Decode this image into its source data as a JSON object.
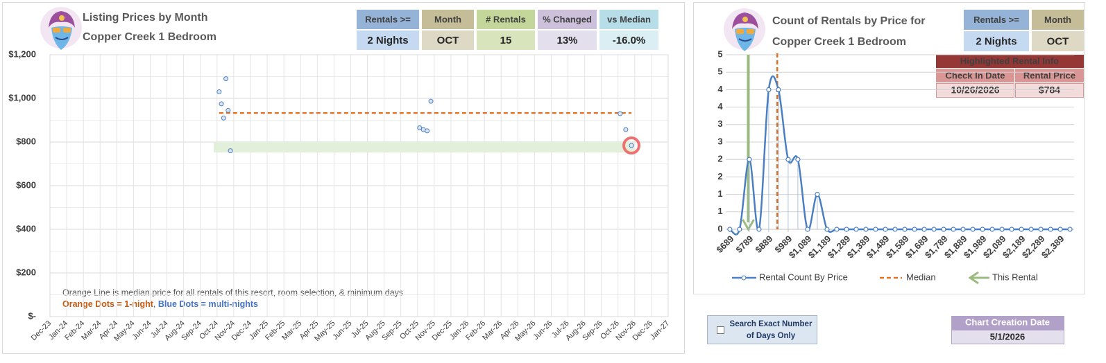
{
  "chart_data": [
    {
      "type": "scatter",
      "title": "Listing Prices by Month",
      "subtitle": "Copper Creek 1 Bedroom",
      "categories": [
        "Dec-23",
        "Jan-24",
        "Feb-24",
        "Mar-24",
        "Apr-24",
        "May-24",
        "Jun-24",
        "Jul-24",
        "Aug-24",
        "Sep-24",
        "Oct-24",
        "Nov-24",
        "Dec-24",
        "Jan-25",
        "Feb-25",
        "Mar-25",
        "Apr-25",
        "May-25",
        "Jun-25",
        "Jul-25",
        "Aug-25",
        "Sep-25",
        "Oct-25",
        "Nov-25",
        "Dec-25",
        "Jan-26",
        "Feb-26",
        "Mar-26",
        "Apr-26",
        "May-26",
        "Jun-26",
        "Jul-26",
        "Aug-26",
        "Sep-26",
        "Oct-26",
        "Nov-26",
        "Dec-26",
        "Jan-27"
      ],
      "series": [
        {
          "color": "#4a7fc1",
          "x": [
            "Oct-24",
            "Oct-24",
            "Oct-24",
            "Oct-24",
            "Oct-24",
            "Oct-24",
            "Oct-25",
            "Oct-25",
            "Oct-25",
            "Oct-25",
            "Oct-26",
            "Oct-26",
            "Oct-26"
          ],
          "values": [
            1030,
            975,
            910,
            1090,
            945,
            760,
            865,
            857,
            851,
            987,
            930,
            857,
            784
          ]
        }
      ],
      "ylim": [
        0,
        1200
      ],
      "yticks": [
        {
          "value": 0,
          "label": "$-"
        },
        {
          "value": 200,
          "label": "$200"
        },
        {
          "value": 400,
          "label": "$400"
        },
        {
          "value": 600,
          "label": "$600"
        },
        {
          "value": 800,
          "label": "$800"
        },
        {
          "value": 1000,
          "label": "$1,000"
        },
        {
          "value": 1200,
          "label": "$1,200"
        }
      ],
      "grid": true,
      "median": 933,
      "median_color": "#e07020",
      "band": [
        752,
        800
      ],
      "band_color": "#e2efda",
      "highlighted_point": 12,
      "notes": [
        "Orange Line is median price for all rentals of this resort, room selection, & minimum days"
      ],
      "dot_key": [
        "Orange Dots = 1-night",
        ", ",
        "Blue Dots = multi-nights"
      ]
    },
    {
      "type": "line",
      "title": "Count of Rentals by Price for",
      "subtitle": "Copper Creek 1 Bedroom",
      "x": [
        689,
        739,
        789,
        839,
        889,
        939,
        989,
        1039,
        1089,
        1139,
        1189,
        1239,
        1289,
        1339,
        1389,
        1439,
        1489,
        1539,
        1589,
        1639,
        1689,
        1739,
        1789,
        1839,
        1889,
        1939,
        1989,
        2039,
        2089,
        2139,
        2189,
        2239,
        2289,
        2339,
        2389,
        2439
      ],
      "series": [
        {
          "name": "Rental Count By Price",
          "color": "#4a7fc1",
          "values": [
            0,
            0,
            2,
            0,
            4,
            4,
            2,
            2,
            0,
            1,
            0,
            0,
            0,
            0,
            0,
            0,
            0,
            0,
            0,
            0,
            0,
            0,
            0,
            0,
            0,
            0,
            0,
            0,
            0,
            0,
            0,
            0,
            0,
            0,
            0,
            0
          ]
        }
      ],
      "xlim": [
        668,
        2460
      ],
      "xticks": [
        {
          "value": 689,
          "label": "$689"
        },
        {
          "value": 789,
          "label": "$789"
        },
        {
          "value": 889,
          "label": "$889"
        },
        {
          "value": 989,
          "label": "$989"
        },
        {
          "value": 1089,
          "label": "$1,089"
        },
        {
          "value": 1189,
          "label": "$1,189"
        },
        {
          "value": 1289,
          "label": "$1,289"
        },
        {
          "value": 1389,
          "label": "$1,389"
        },
        {
          "value": 1489,
          "label": "$1,489"
        },
        {
          "value": 1589,
          "label": "$1,589"
        },
        {
          "value": 1689,
          "label": "$1,689"
        },
        {
          "value": 1789,
          "label": "$1,789"
        },
        {
          "value": 1889,
          "label": "$1,889"
        },
        {
          "value": 1989,
          "label": "$1,989"
        },
        {
          "value": 2089,
          "label": "$2,089"
        },
        {
          "value": 2189,
          "label": "$2,189"
        },
        {
          "value": 2289,
          "label": "$2,289"
        },
        {
          "value": 2389,
          "label": "$2,389"
        }
      ],
      "ylim": [
        0,
        5
      ],
      "yticks": [
        0,
        {
          "value": 0.5,
          "label": "1"
        },
        1,
        {
          "value": 1.5,
          "label": "2"
        },
        2,
        {
          "value": 2.5,
          "label": "3"
        },
        3,
        {
          "value": 3.5,
          "label": "4"
        },
        4,
        {
          "value": 4.5,
          "label": "5"
        },
        5
      ],
      "grid": true,
      "median": {
        "name": "Median",
        "color": "#e07020",
        "x": 933
      },
      "this_rental": {
        "name": "This Rental",
        "color": "#9bbb7e",
        "x": 784
      }
    }
  ],
  "summary": [
    {
      "header": "Rentals >=",
      "value": "2 Nights"
    },
    {
      "header": "Month",
      "value": "OCT"
    },
    {
      "header": "# Rentals",
      "value": "15"
    },
    {
      "header": "% Changed",
      "value": "13%"
    },
    {
      "header": "vs Median",
      "value": "-16.0%"
    }
  ],
  "summary_right": [
    {
      "header": "Rentals >=",
      "value": "2 Nights"
    },
    {
      "header": "Month",
      "value": "OCT"
    }
  ],
  "highlighted_rental": {
    "title": "Highlighted Rental Info",
    "headers": [
      "Check In Date",
      "Rental Price"
    ],
    "values": [
      "10/26/2026",
      "$784"
    ]
  },
  "search_option": {
    "lines": [
      "Search Exact Number",
      "of Days Only"
    ],
    "checked": false
  },
  "creation_date": {
    "header": "Chart Creation Date",
    "value": "5/1/2026"
  }
}
